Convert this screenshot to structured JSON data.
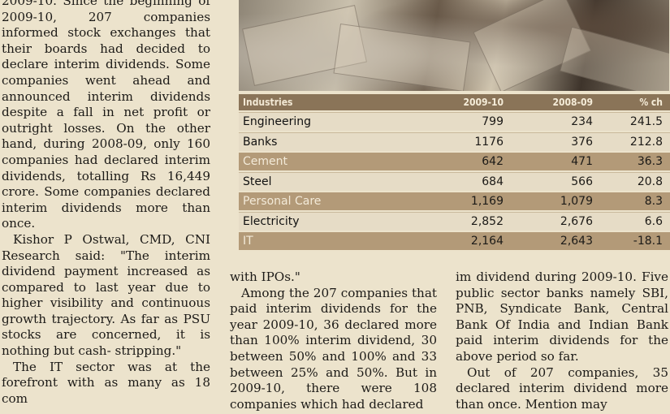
{
  "left_column": [
    "2009-10. Since the beginning of 2009-10, 207 companies informed stock exchanges that their boards had decided to declare interim dividends. Some companies went ahead and announced interim dividends despite a fall in net profit or outright losses. On the other hand, during 2008-09, only 160 companies had declared interim dividends, totalling Rs 16,449 crore. Some companies declared interim dividends more than once.",
    "Kishor P Ostwal, CMD, CNI Research said: \"The interim dividend payment increased as compared to last year due to higher visibility and continuous growth trajectory. As far as PSU stocks are concerned, it is nothing but cash- stripping.\"",
    "The IT sector was at the forefront with as many as 18 com"
  ],
  "middle_column": [
    "with IPOs.\"",
    "Among the 207 companies that paid interim dividends for the year 2009-10, 36 declared more than 100% interim dividend, 30 between 50% and 100% and 33 between 25% and 50%. But in 2009-10, there were 108 companies which had declared"
  ],
  "right_column": [
    "im dividend during 2009-10. Five public sector banks namely SBI, PNB, Syndicate Bank, Central Bank Of India and Indian Bank paid interim dividends for the above period so far.",
    "Out of 207 companies, 35 declared interim dividend more than once. Mention may"
  ],
  "table": {
    "headers": [
      "Industries",
      "2009-10",
      "2008-09",
      "% ch"
    ],
    "rows": [
      [
        "Engineering",
        "799",
        "234",
        "241.5"
      ],
      [
        "Banks",
        "1176",
        "376",
        "212.8"
      ],
      [
        "Cement",
        "642",
        "471",
        "36.3"
      ],
      [
        "Steel",
        "684",
        "566",
        "20.8"
      ],
      [
        "Personal Care",
        "1,169",
        "1,079",
        "8.3"
      ],
      [
        "Electricity",
        "2,852",
        "2,676",
        "6.6"
      ],
      [
        "IT",
        "2,164",
        "2,643",
        "-18.1"
      ]
    ]
  }
}
